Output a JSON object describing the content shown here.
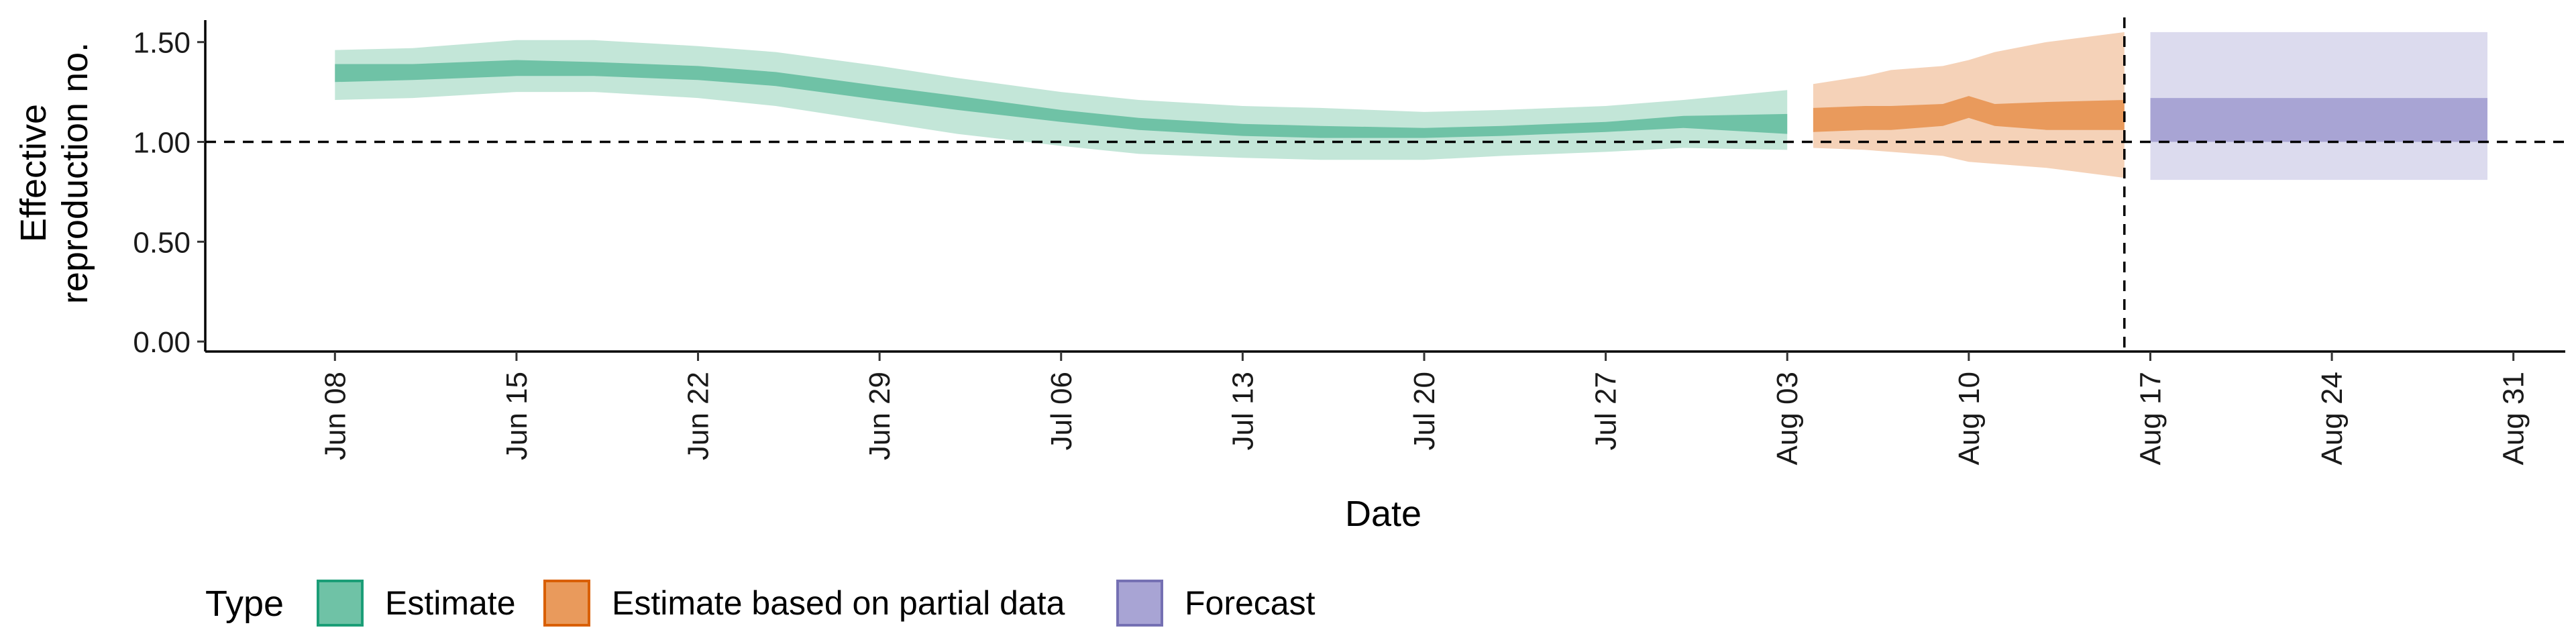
{
  "chart_data": {
    "type": "area",
    "title": "",
    "xlabel": "Date",
    "ylabel": "Effective reproduction no.",
    "ylabel_lines": [
      "Effective",
      "reproduction no."
    ],
    "x_range": [
      "2020-06-03",
      "2020-09-02"
    ],
    "ylim": [
      -0.05,
      1.61
    ],
    "x_ticks": [
      "2020-06-08",
      "2020-06-15",
      "2020-06-22",
      "2020-06-29",
      "2020-07-06",
      "2020-07-13",
      "2020-07-20",
      "2020-07-27",
      "2020-08-03",
      "2020-08-10",
      "2020-08-17",
      "2020-08-24",
      "2020-08-31"
    ],
    "x_tick_labels": [
      "Jun 08",
      "Jun 15",
      "Jun 22",
      "Jun 29",
      "Jul 06",
      "Jul 13",
      "Jul 20",
      "Jul 27",
      "Aug 03",
      "Aug 10",
      "Aug 17",
      "Aug 24",
      "Aug 31"
    ],
    "y_ticks": [
      0,
      0.5,
      1,
      1.5
    ],
    "y_tick_labels": [
      "0.00",
      "0.50",
      "1.00",
      "1.50"
    ],
    "reference_line_y": 1.0,
    "reference_date": "2020-08-16",
    "grid": false,
    "legend": {
      "title": "Type",
      "position": "bottom-left",
      "items": [
        "Estimate",
        "Estimate based on partial data",
        "Forecast"
      ]
    },
    "colors": {
      "estimate_inner": "#6FC2A6",
      "estimate_outer": "#C3E6D8",
      "estimate_border": "#1B9E77",
      "partial_inner": "#E99A5C",
      "partial_outer": "#F5D2B8",
      "partial_border": "#D95F02",
      "forecast_inner": "#A8A4D4",
      "forecast_outer": "#DCDBEE",
      "forecast_border": "#7570B3"
    },
    "series": [
      {
        "name": "Estimate",
        "x": [
          "2020-06-08",
          "2020-06-11",
          "2020-06-15",
          "2020-06-18",
          "2020-06-22",
          "2020-06-25",
          "2020-06-29",
          "2020-07-02",
          "2020-07-06",
          "2020-07-09",
          "2020-07-13",
          "2020-07-16",
          "2020-07-20",
          "2020-07-23",
          "2020-07-27",
          "2020-07-30",
          "2020-08-03"
        ],
        "inner_lower": [
          1.3,
          1.31,
          1.33,
          1.33,
          1.31,
          1.28,
          1.21,
          1.16,
          1.1,
          1.06,
          1.03,
          1.02,
          1.02,
          1.03,
          1.05,
          1.07,
          1.04
        ],
        "inner_upper": [
          1.39,
          1.39,
          1.41,
          1.4,
          1.38,
          1.35,
          1.28,
          1.23,
          1.16,
          1.12,
          1.09,
          1.08,
          1.07,
          1.08,
          1.1,
          1.13,
          1.14
        ],
        "outer_lower": [
          1.21,
          1.22,
          1.25,
          1.25,
          1.22,
          1.18,
          1.1,
          1.04,
          0.98,
          0.94,
          0.92,
          0.91,
          0.91,
          0.93,
          0.95,
          0.97,
          0.96
        ],
        "outer_upper": [
          1.46,
          1.47,
          1.51,
          1.51,
          1.48,
          1.45,
          1.38,
          1.32,
          1.25,
          1.21,
          1.18,
          1.17,
          1.15,
          1.16,
          1.18,
          1.21,
          1.26
        ]
      },
      {
        "name": "Estimate based on partial data",
        "x": [
          "2020-08-04",
          "2020-08-06",
          "2020-08-07",
          "2020-08-09",
          "2020-08-10",
          "2020-08-11",
          "2020-08-13",
          "2020-08-16"
        ],
        "inner_lower": [
          1.05,
          1.06,
          1.06,
          1.08,
          1.12,
          1.08,
          1.06,
          1.06
        ],
        "inner_upper": [
          1.17,
          1.18,
          1.18,
          1.19,
          1.23,
          1.19,
          1.2,
          1.21
        ],
        "outer_lower": [
          0.97,
          0.96,
          0.95,
          0.93,
          0.9,
          0.89,
          0.87,
          0.82
        ],
        "outer_upper": [
          1.29,
          1.33,
          1.36,
          1.38,
          1.41,
          1.45,
          1.5,
          1.55
        ]
      },
      {
        "name": "Forecast",
        "x": [
          "2020-08-17",
          "2020-08-30"
        ],
        "inner_lower": [
          1.0,
          1.0
        ],
        "inner_upper": [
          1.22,
          1.22
        ],
        "outer_lower": [
          0.81,
          0.81
        ],
        "outer_upper": [
          1.55,
          1.55
        ]
      }
    ]
  }
}
